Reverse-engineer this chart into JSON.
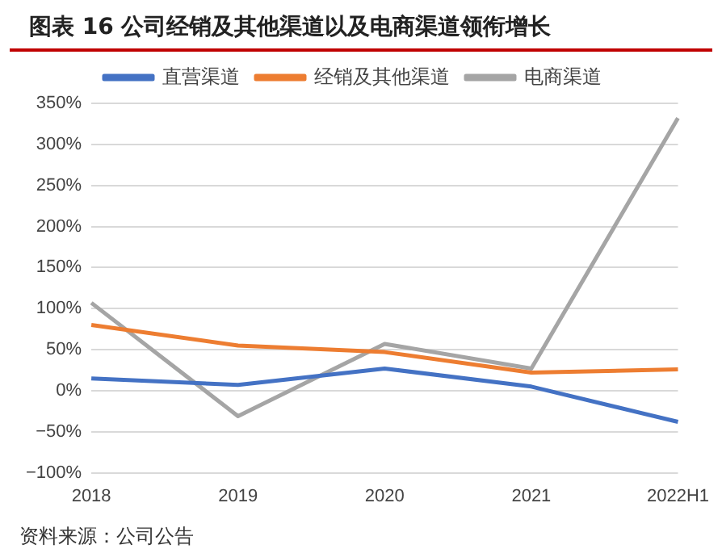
{
  "chart_data": {
    "type": "line",
    "title": "图表 16 公司经销及其他渠道以及电商渠道领衔增长",
    "categories": [
      "2018",
      "2019",
      "2020",
      "2021",
      "2022H1"
    ],
    "series": [
      {
        "name": "直营渠道",
        "color": "#4472c4",
        "values": [
          15,
          7,
          27,
          5,
          -38
        ]
      },
      {
        "name": "经销及其他渠道",
        "color": "#ed7d31",
        "values": [
          80,
          55,
          47,
          22,
          26
        ]
      },
      {
        "name": "电商渠道",
        "color": "#a5a5a5",
        "values": [
          107,
          -31,
          57,
          27,
          332
        ]
      }
    ],
    "ylim": [
      -100,
      350
    ],
    "yticks": [
      {
        "value": -100,
        "label": "−100%"
      },
      {
        "value": -50,
        "label": "−50%"
      },
      {
        "value": 0,
        "label": "0%"
      },
      {
        "value": 50,
        "label": "50%"
      },
      {
        "value": 100,
        "label": "100%"
      },
      {
        "value": 150,
        "label": "150%"
      },
      {
        "value": 200,
        "label": "200%"
      },
      {
        "value": 250,
        "label": "250%"
      },
      {
        "value": 300,
        "label": "300%"
      },
      {
        "value": 350,
        "label": "350%"
      }
    ],
    "grid": "y",
    "legend": "top",
    "marker": "none",
    "annotations": [
      "资料来源：公司公告"
    ]
  }
}
